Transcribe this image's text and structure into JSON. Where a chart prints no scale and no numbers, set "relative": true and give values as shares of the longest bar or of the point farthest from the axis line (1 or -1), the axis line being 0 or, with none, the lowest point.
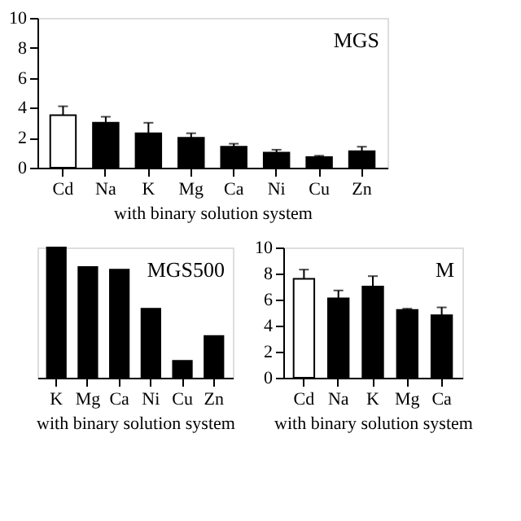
{
  "chart_data": [
    {
      "type": "bar",
      "title": "MGS",
      "xlabel": "with binary solution system",
      "categories": [
        "Cd",
        "Na",
        "K",
        "Mg",
        "Ca",
        "Ni",
        "Cu",
        "Zn"
      ],
      "values": [
        3.5,
        3.0,
        2.3,
        2.0,
        1.4,
        1.0,
        0.7,
        1.1
      ],
      "errors": [
        [
          3.5,
          4.1
        ],
        [
          3.0,
          3.4
        ],
        [
          2.3,
          3.0
        ],
        [
          2.0,
          2.3
        ],
        [
          1.4,
          1.6
        ],
        [
          1.0,
          1.2
        ],
        [
          0.7,
          0.8
        ],
        [
          1.1,
          1.4
        ]
      ],
      "colors": [
        "#ffffff",
        "#000000",
        "#000000",
        "#000000",
        "#000000",
        "#000000",
        "#000000",
        "#000000"
      ],
      "ylim": [
        0,
        10
      ],
      "yticks": [
        0,
        2,
        4,
        6,
        8,
        10
      ],
      "grid": false
    },
    {
      "type": "bar",
      "title": "MGS500",
      "xlabel": "with binary solution system",
      "categories": [
        "K",
        "Mg",
        "Ca",
        "Ni",
        "Cu",
        "Zn"
      ],
      "values": [
        1,
        0.85,
        0.83,
        0.53,
        0.13,
        0.32
      ],
      "relative": true,
      "colors": [
        "#000000",
        "#000000",
        "#000000",
        "#000000",
        "#000000",
        "#000000"
      ],
      "grid": false
    },
    {
      "type": "bar",
      "title": "M",
      "xlabel": "with binary solution system",
      "categories": [
        "Cd",
        "Na",
        "K",
        "Mg",
        "Ca"
      ],
      "values": [
        7.6,
        6.1,
        7.0,
        5.2,
        4.8
      ],
      "errors": [
        [
          7.6,
          8.3
        ],
        [
          6.1,
          6.7
        ],
        [
          7.0,
          7.8
        ],
        [
          5.2,
          5.3
        ],
        [
          4.8,
          5.4
        ]
      ],
      "colors": [
        "#ffffff",
        "#000000",
        "#000000",
        "#000000",
        "#000000"
      ],
      "ylim": [
        0,
        10
      ],
      "yticks": [
        0,
        2,
        4,
        6,
        8,
        10
      ],
      "grid": false
    }
  ]
}
